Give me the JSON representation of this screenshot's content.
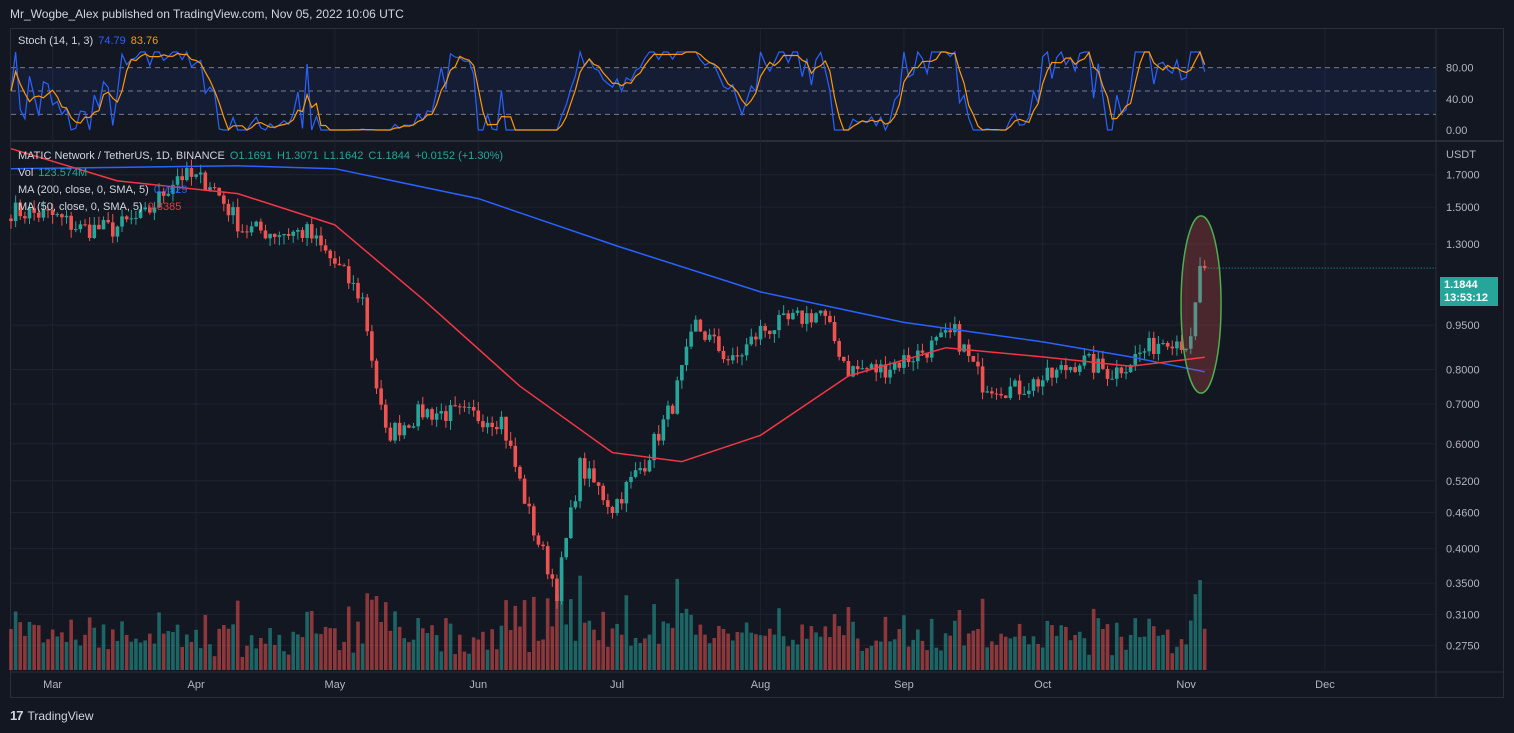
{
  "header": {
    "publish_text": "Mr_Wogbe_Alex published on TradingView.com, Nov 05, 2022 10:06 UTC"
  },
  "stoch": {
    "label": "Stoch (14, 1, 3)",
    "k_value": "74.79",
    "d_value": "83.76",
    "levels": [
      "80.00",
      "40.00",
      "0.00"
    ],
    "k_color": "#2962ff",
    "d_color": "#ff9800"
  },
  "main_legend": {
    "symbol": "MATIC Network / TetherUS, 1D, BINANCE",
    "open": "O1.1691",
    "high": "H1.3071",
    "low": "L1.1642",
    "close": "C1.1844",
    "change": "+0.0152 (+1.30%)",
    "vol_label": "Vol",
    "vol_value": "123.574M",
    "ma200_label": "MA (200, close, 0, SMA, 5)",
    "ma200_value": "0.7929",
    "ma50_label": "MA (50, close, 0, SMA, 5)",
    "ma50_value": "0.8385"
  },
  "price_axis": {
    "currency": "USDT",
    "ticks": [
      "1.7000",
      "1.5000",
      "1.3000",
      "0.9500",
      "0.8000",
      "0.7000",
      "0.6000",
      "0.5200",
      "0.4600",
      "0.4000",
      "0.3500",
      "0.3100",
      "0.2750"
    ]
  },
  "price_badge": {
    "price": "1.1844",
    "countdown": "13:53:12"
  },
  "time_axis": {
    "months": [
      "Mar",
      "Apr",
      "May",
      "Jun",
      "Jul",
      "Aug",
      "Sep",
      "Oct",
      "Nov",
      "Dec"
    ]
  },
  "footer": {
    "brand": "TradingView"
  },
  "colors": {
    "up": "#26a69a",
    "down": "#ef5350",
    "ma200": "#2962ff",
    "ma50": "#f23645",
    "highlight": "#4caf50",
    "background": "#131722"
  },
  "chart_data": {
    "type": "candlestick",
    "scale": "log",
    "ylim": [
      0.25,
      1.9
    ],
    "anchors": [
      [
        "2022-02-20",
        1.48
      ],
      [
        "2022-03-01",
        1.45
      ],
      [
        "2022-03-07",
        1.38
      ],
      [
        "2022-03-14",
        1.38
      ],
      [
        "2022-03-21",
        1.45
      ],
      [
        "2022-03-28",
        1.7
      ],
      [
        "2022-04-04",
        1.65
      ],
      [
        "2022-04-11",
        1.38
      ],
      [
        "2022-04-18",
        1.36
      ],
      [
        "2022-04-25",
        1.36
      ],
      [
        "2022-05-02",
        1.18
      ],
      [
        "2022-05-07",
        1.05
      ],
      [
        "2022-05-10",
        0.75
      ],
      [
        "2022-05-12",
        0.62
      ],
      [
        "2022-05-20",
        0.68
      ],
      [
        "2022-05-30",
        0.67
      ],
      [
        "2022-06-06",
        0.66
      ],
      [
        "2022-06-13",
        0.43
      ],
      [
        "2022-06-18",
        0.34
      ],
      [
        "2022-06-23",
        0.55
      ],
      [
        "2022-06-30",
        0.47
      ],
      [
        "2022-07-07",
        0.56
      ],
      [
        "2022-07-13",
        0.7
      ],
      [
        "2022-07-18",
        0.95
      ],
      [
        "2022-07-26",
        0.82
      ],
      [
        "2022-08-01",
        0.93
      ],
      [
        "2022-08-14",
        1.0
      ],
      [
        "2022-08-20",
        0.8
      ],
      [
        "2022-08-27",
        0.8
      ],
      [
        "2022-09-04",
        0.85
      ],
      [
        "2022-09-12",
        0.92
      ],
      [
        "2022-09-18",
        0.76
      ],
      [
        "2022-09-25",
        0.74
      ],
      [
        "2022-10-03",
        0.78
      ],
      [
        "2022-10-09",
        0.83
      ],
      [
        "2022-10-16",
        0.79
      ],
      [
        "2022-10-22",
        0.85
      ],
      [
        "2022-10-28",
        0.91
      ],
      [
        "2022-11-02",
        0.88
      ],
      [
        "2022-11-04",
        1.17
      ],
      [
        "2022-11-05",
        1.1844
      ]
    ],
    "ma200_anchors": [
      [
        "2022-02-20",
        1.74
      ],
      [
        "2022-04-10",
        1.76
      ],
      [
        "2022-05-01",
        1.74
      ],
      [
        "2022-06-01",
        1.55
      ],
      [
        "2022-07-01",
        1.29
      ],
      [
        "2022-08-01",
        1.08
      ],
      [
        "2022-09-01",
        0.96
      ],
      [
        "2022-10-01",
        0.89
      ],
      [
        "2022-10-20",
        0.84
      ],
      [
        "2022-11-05",
        0.7929
      ]
    ],
    "ma50_anchors": [
      [
        "2022-02-20",
        1.88
      ],
      [
        "2022-03-15",
        1.66
      ],
      [
        "2022-04-10",
        1.58
      ],
      [
        "2022-05-01",
        1.4
      ],
      [
        "2022-05-20",
        1.05
      ],
      [
        "2022-06-10",
        0.75
      ],
      [
        "2022-06-30",
        0.58
      ],
      [
        "2022-07-15",
        0.56
      ],
      [
        "2022-08-01",
        0.62
      ],
      [
        "2022-08-20",
        0.78
      ],
      [
        "2022-09-10",
        0.87
      ],
      [
        "2022-10-01",
        0.84
      ],
      [
        "2022-10-20",
        0.81
      ],
      [
        "2022-11-05",
        0.8385
      ]
    ],
    "stoch_k_last": 74.79,
    "stoch_d_last": 83.76,
    "volume_last": "123.574M"
  }
}
